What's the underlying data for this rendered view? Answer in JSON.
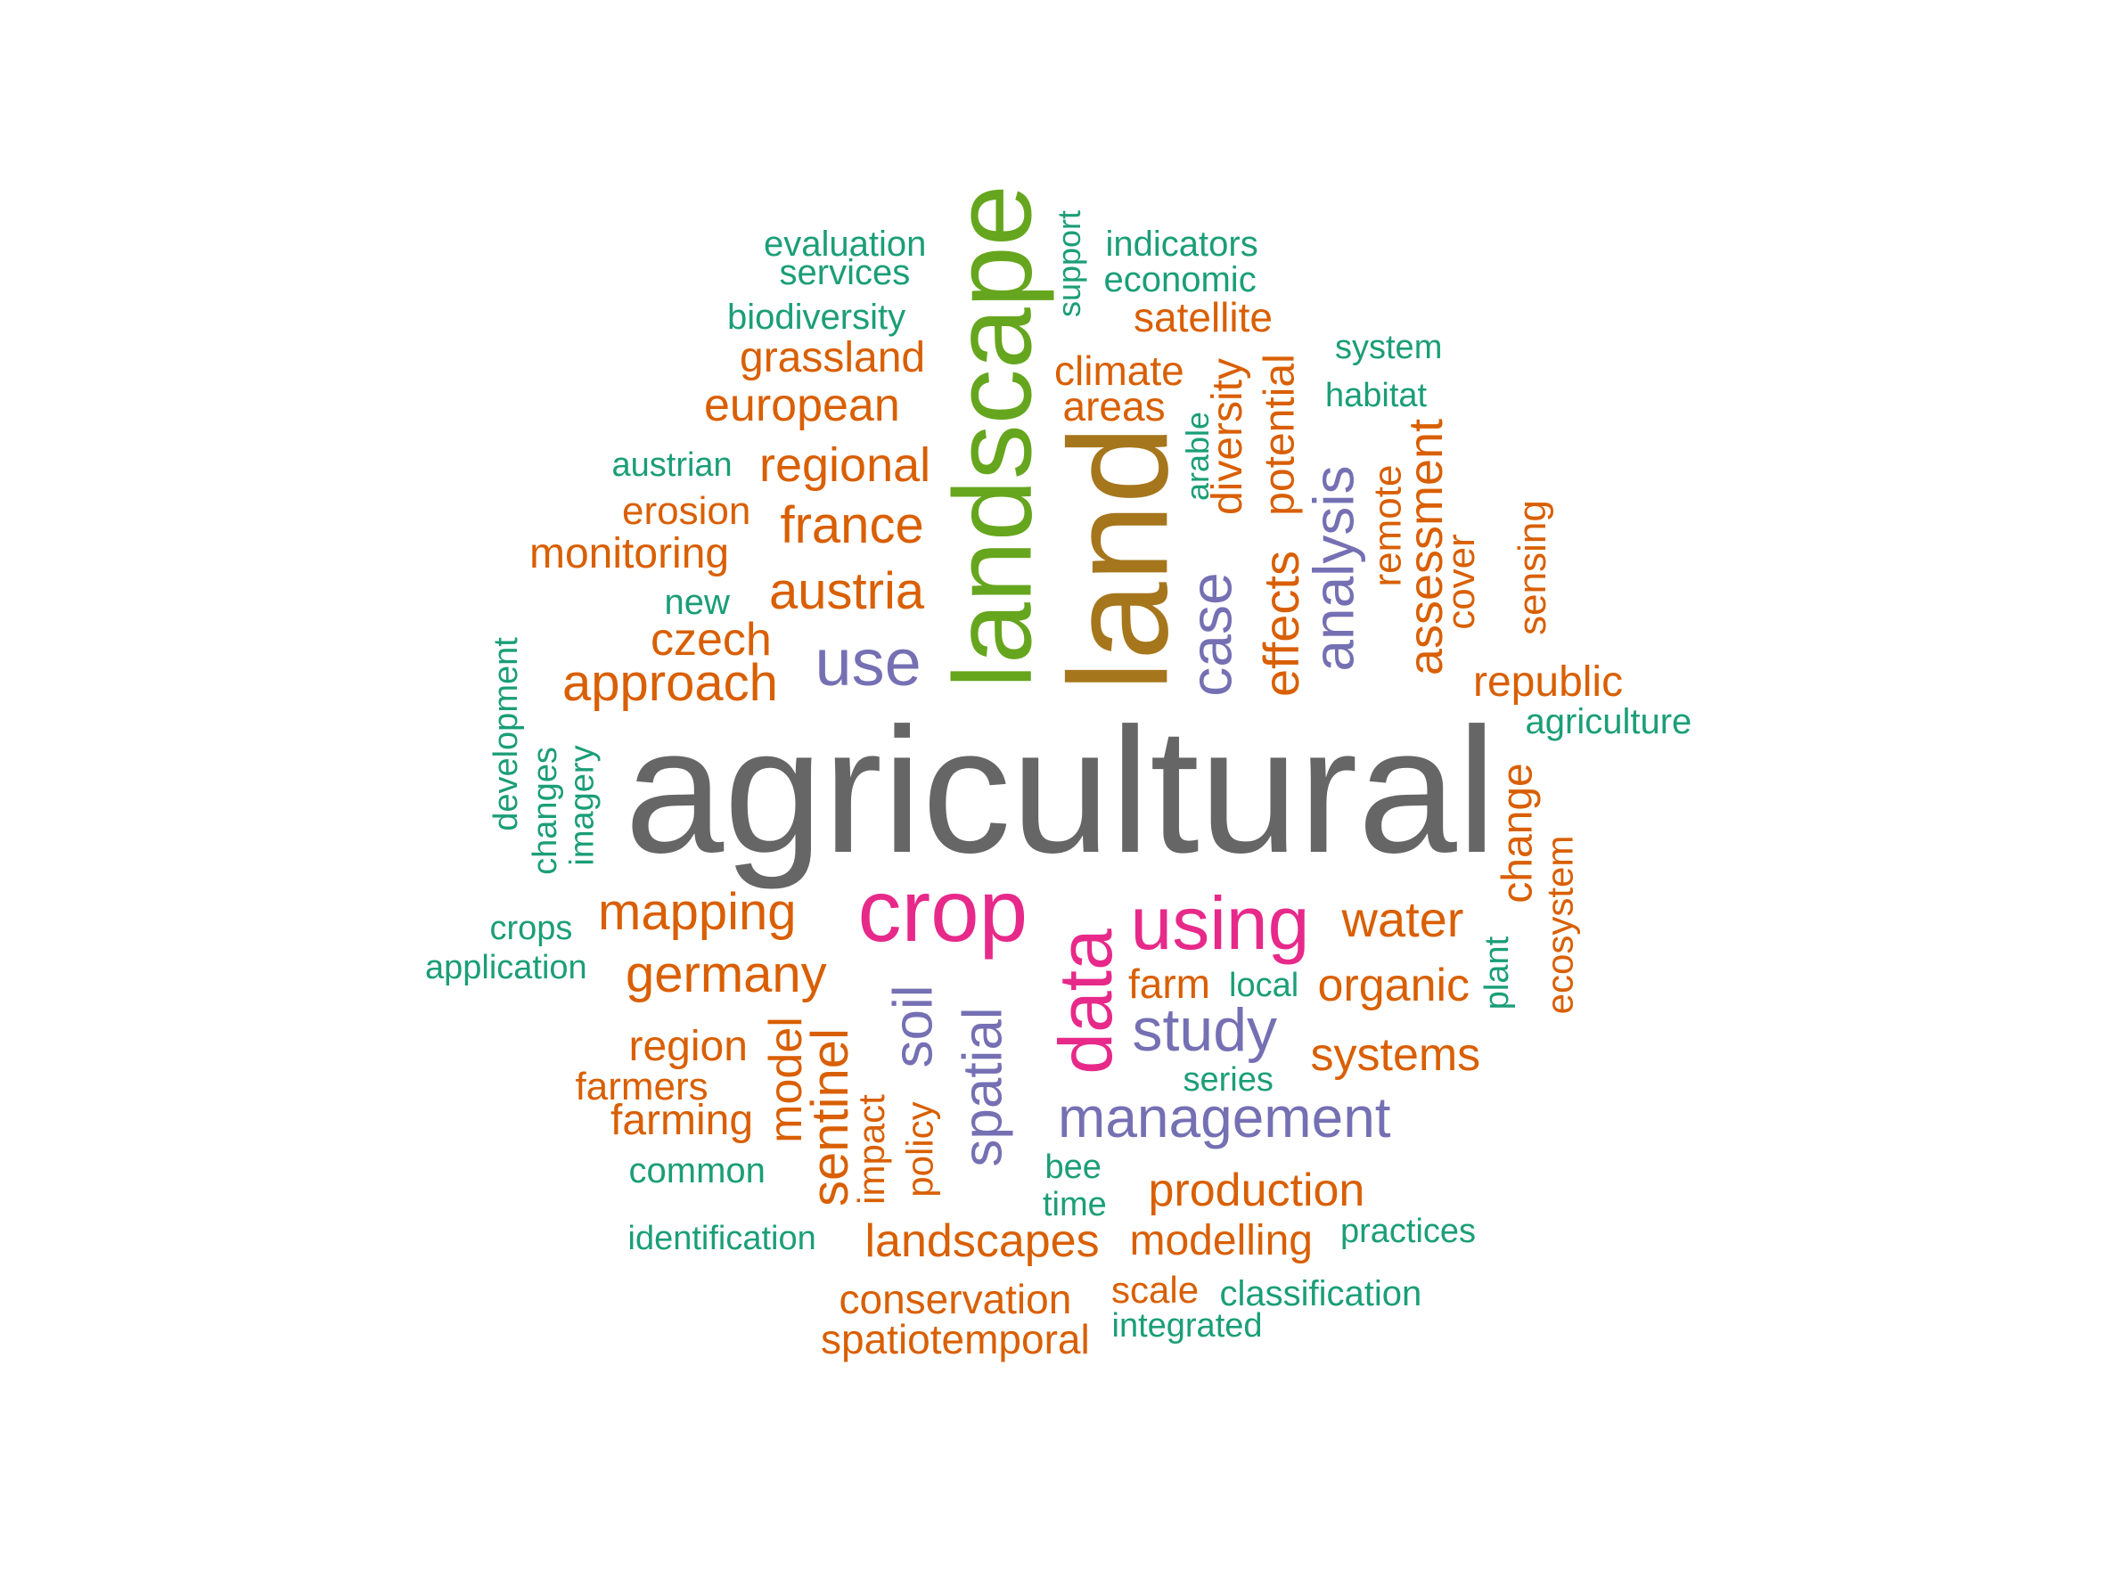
{
  "colors": {
    "gray": "#666666",
    "green": "#66a61e",
    "brown": "#a6761d",
    "pink": "#e7298a",
    "purple": "#7570b3",
    "orange": "#d95f02",
    "teal": "#1b9e77"
  },
  "words": [
    {
      "id": "w0",
      "text": "agricultural",
      "color": "gray"
    },
    {
      "id": "w1",
      "text": "landscape",
      "color": "green"
    },
    {
      "id": "w2",
      "text": "land",
      "color": "brown"
    },
    {
      "id": "w3",
      "text": "crop",
      "color": "pink"
    },
    {
      "id": "w4",
      "text": "using",
      "color": "pink"
    },
    {
      "id": "w5",
      "text": "data",
      "color": "pink"
    },
    {
      "id": "w6",
      "text": "use",
      "color": "purple"
    },
    {
      "id": "w7",
      "text": "case",
      "color": "purple"
    },
    {
      "id": "w8",
      "text": "analysis",
      "color": "purple"
    },
    {
      "id": "w9",
      "text": "study",
      "color": "purple"
    },
    {
      "id": "w10",
      "text": "management",
      "color": "purple"
    },
    {
      "id": "w11",
      "text": "soil",
      "color": "purple"
    },
    {
      "id": "w12",
      "text": "spatial",
      "color": "purple"
    },
    {
      "id": "w13",
      "text": "approach",
      "color": "orange"
    },
    {
      "id": "w14",
      "text": "austria",
      "color": "orange"
    },
    {
      "id": "w15",
      "text": "france",
      "color": "orange"
    },
    {
      "id": "w16",
      "text": "regional",
      "color": "orange"
    },
    {
      "id": "w17",
      "text": "european",
      "color": "orange"
    },
    {
      "id": "w18",
      "text": "grassland",
      "color": "orange"
    },
    {
      "id": "w19",
      "text": "czech",
      "color": "orange"
    },
    {
      "id": "w20",
      "text": "monitoring",
      "color": "orange"
    },
    {
      "id": "w21",
      "text": "erosion",
      "color": "orange"
    },
    {
      "id": "w22",
      "text": "mapping",
      "color": "orange"
    },
    {
      "id": "w23",
      "text": "germany",
      "color": "orange"
    },
    {
      "id": "w24",
      "text": "region",
      "color": "orange"
    },
    {
      "id": "w25",
      "text": "farmers",
      "color": "orange"
    },
    {
      "id": "w26",
      "text": "farming",
      "color": "orange"
    },
    {
      "id": "w27",
      "text": "model",
      "color": "orange"
    },
    {
      "id": "w28",
      "text": "sentinel",
      "color": "orange"
    },
    {
      "id": "w29",
      "text": "impact",
      "color": "orange"
    },
    {
      "id": "w30",
      "text": "policy",
      "color": "orange"
    },
    {
      "id": "w31",
      "text": "landscapes",
      "color": "orange"
    },
    {
      "id": "w32",
      "text": "conservation",
      "color": "orange"
    },
    {
      "id": "w33",
      "text": "spatiotemporal",
      "color": "orange"
    },
    {
      "id": "w34",
      "text": "scale",
      "color": "orange"
    },
    {
      "id": "w35",
      "text": "modelling",
      "color": "orange"
    },
    {
      "id": "w36",
      "text": "production",
      "color": "orange"
    },
    {
      "id": "w37",
      "text": "systems",
      "color": "orange"
    },
    {
      "id": "w38",
      "text": "organic",
      "color": "orange"
    },
    {
      "id": "w39",
      "text": "water",
      "color": "orange"
    },
    {
      "id": "w40",
      "text": "farm",
      "color": "orange"
    },
    {
      "id": "w41",
      "text": "effects",
      "color": "orange"
    },
    {
      "id": "w42",
      "text": "potential",
      "color": "orange"
    },
    {
      "id": "w43",
      "text": "diversity",
      "color": "orange"
    },
    {
      "id": "w44",
      "text": "assessment",
      "color": "orange"
    },
    {
      "id": "w45",
      "text": "remote",
      "color": "orange"
    },
    {
      "id": "w46",
      "text": "cover",
      "color": "orange"
    },
    {
      "id": "w47",
      "text": "sensing",
      "color": "orange"
    },
    {
      "id": "w48",
      "text": "republic",
      "color": "orange"
    },
    {
      "id": "w49",
      "text": "change",
      "color": "orange"
    },
    {
      "id": "w50",
      "text": "ecosystem",
      "color": "orange"
    },
    {
      "id": "w51",
      "text": "climate",
      "color": "orange"
    },
    {
      "id": "w52",
      "text": "areas",
      "color": "orange"
    },
    {
      "id": "w53",
      "text": "satellite",
      "color": "orange"
    },
    {
      "id": "w54",
      "text": "evaluation",
      "color": "teal"
    },
    {
      "id": "w55",
      "text": "services",
      "color": "teal"
    },
    {
      "id": "w56",
      "text": "biodiversity",
      "color": "teal"
    },
    {
      "id": "w57",
      "text": "austrian",
      "color": "teal"
    },
    {
      "id": "w58",
      "text": "new",
      "color": "teal"
    },
    {
      "id": "w59",
      "text": "development",
      "color": "teal"
    },
    {
      "id": "w60",
      "text": "changes",
      "color": "teal"
    },
    {
      "id": "w61",
      "text": "imagery",
      "color": "teal"
    },
    {
      "id": "w62",
      "text": "crops",
      "color": "teal"
    },
    {
      "id": "w63",
      "text": "application",
      "color": "teal"
    },
    {
      "id": "w64",
      "text": "common",
      "color": "teal"
    },
    {
      "id": "w65",
      "text": "identification",
      "color": "teal"
    },
    {
      "id": "w66",
      "text": "bee",
      "color": "teal"
    },
    {
      "id": "w67",
      "text": "time",
      "color": "teal"
    },
    {
      "id": "w68",
      "text": "series",
      "color": "teal"
    },
    {
      "id": "w69",
      "text": "local",
      "color": "teal"
    },
    {
      "id": "w70",
      "text": "practices",
      "color": "teal"
    },
    {
      "id": "w71",
      "text": "classification",
      "color": "teal"
    },
    {
      "id": "w72",
      "text": "integrated",
      "color": "teal"
    },
    {
      "id": "w73",
      "text": "plant",
      "color": "teal"
    },
    {
      "id": "w74",
      "text": "agriculture",
      "color": "teal"
    },
    {
      "id": "w75",
      "text": "system",
      "color": "teal"
    },
    {
      "id": "w76",
      "text": "habitat",
      "color": "teal"
    },
    {
      "id": "w77",
      "text": "arable",
      "color": "teal"
    },
    {
      "id": "w78",
      "text": "support",
      "color": "teal"
    },
    {
      "id": "w79",
      "text": "indicators",
      "color": "teal"
    },
    {
      "id": "w80",
      "text": "economic",
      "color": "teal"
    }
  ]
}
